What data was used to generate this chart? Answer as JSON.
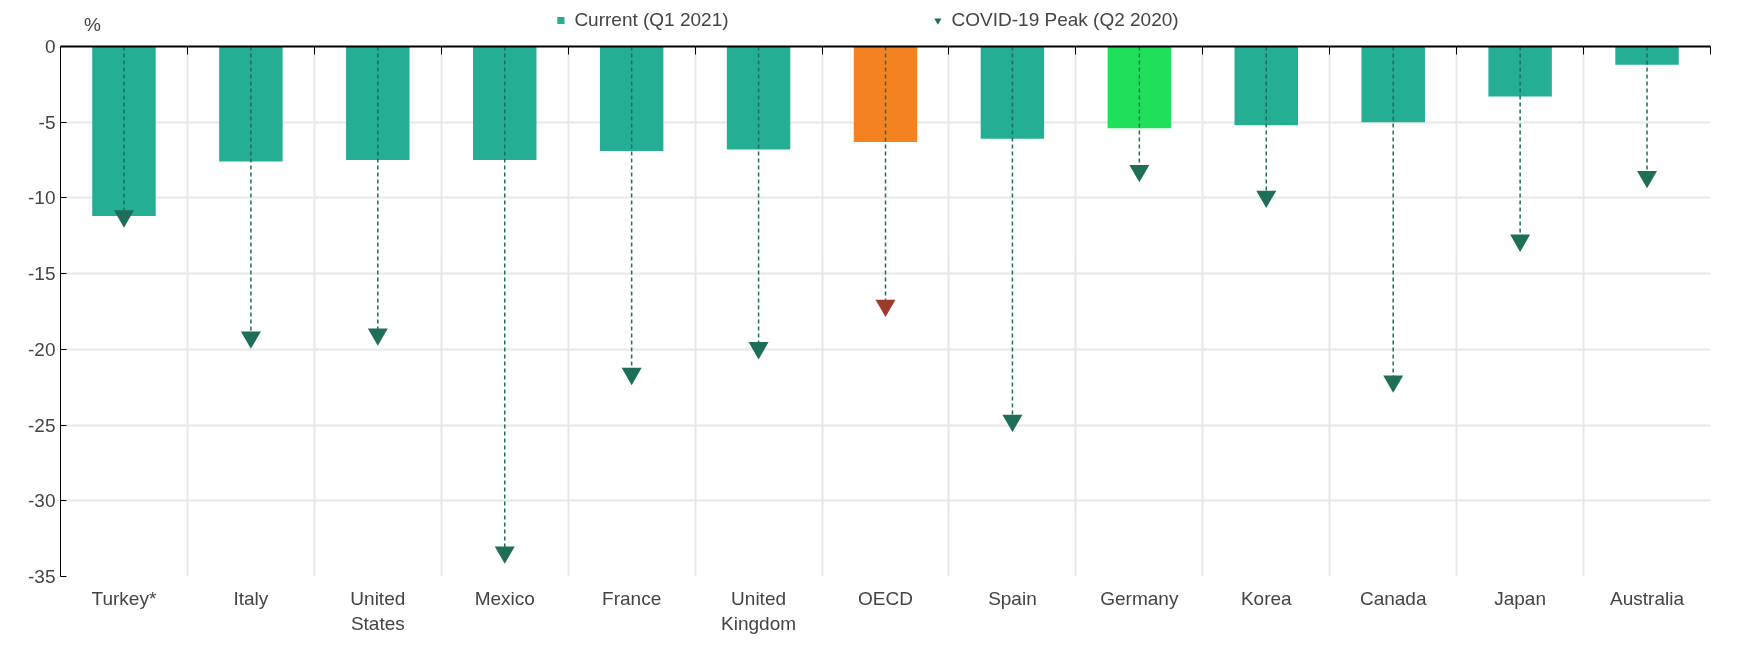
{
  "chart_data": {
    "type": "bar",
    "ylabel": "%",
    "categories": [
      "Turkey*",
      "Italy",
      "United States",
      "Mexico",
      "France",
      "United Kingdom",
      "OECD",
      "Spain",
      "Germany",
      "Korea",
      "Canada",
      "Japan",
      "Australia"
    ],
    "series": [
      {
        "name": "Current (Q1 2021)",
        "color": "#24ae94",
        "colors": [
          "#24ae94",
          "#24ae94",
          "#24ae94",
          "#24ae94",
          "#24ae94",
          "#24ae94",
          "#f58220",
          "#24ae94",
          "#1fe05a",
          "#24ae94",
          "#24ae94",
          "#24ae94",
          "#24ae94"
        ],
        "values": [
          -11.2,
          -7.6,
          -7.5,
          -7.5,
          -6.9,
          -6.8,
          -6.3,
          -6.1,
          -5.4,
          -5.2,
          -5.0,
          -3.3,
          -1.2
        ]
      },
      {
        "name": "COVID-19 Peak (Q2 2020)",
        "type": "scatter",
        "marker": "triangle",
        "color": "#1e6e5a",
        "colors": [
          "#1e6e5a",
          "#1e6e5a",
          "#1e6e5a",
          "#1e6e5a",
          "#1e6e5a",
          "#1e6e5a",
          "#9b3b2b",
          "#1e6e5a",
          "#1e6e5a",
          "#1e6e5a",
          "#1e6e5a",
          "#1e6e5a",
          "#1e6e5a"
        ],
        "line_style": "dashed",
        "values": [
          -11.2,
          -19.2,
          -19.0,
          -33.4,
          -21.6,
          -19.9,
          -17.1,
          -24.7,
          -8.2,
          -9.9,
          -22.1,
          -12.8,
          -8.6
        ]
      }
    ],
    "ylim": [
      -35,
      0
    ],
    "yticks": [
      0,
      -5,
      -10,
      -15,
      -20,
      -25,
      -30,
      -35
    ],
    "grid": true,
    "legend": "top"
  }
}
